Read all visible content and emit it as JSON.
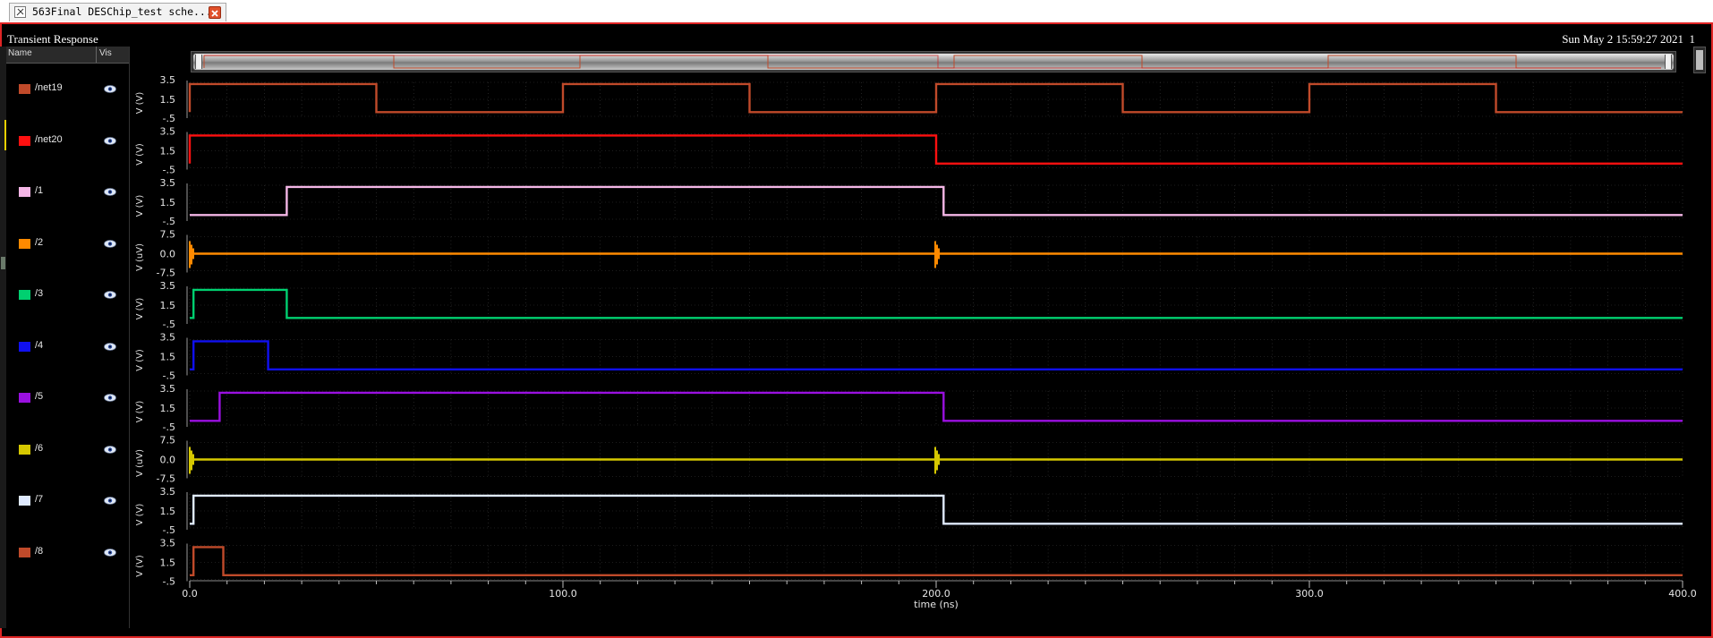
{
  "tab": {
    "label": "563Final DESChip_test sche...",
    "icon": "schematic-icon",
    "close_icon": "close-icon"
  },
  "window": {
    "title": "Transient Response",
    "datetime": "Sun May 2 15:59:27 2021",
    "page_index": "1"
  },
  "signal_panel": {
    "name_header": "Name",
    "vis_header": "Vis",
    "signals": [
      {
        "name": "/net19",
        "color": "#c04a2a"
      },
      {
        "name": "/net20",
        "color": "#ff1010"
      },
      {
        "name": "/1",
        "color": "#f4b6e6"
      },
      {
        "name": "/2",
        "color": "#ff8a00"
      },
      {
        "name": "/3",
        "color": "#00d070"
      },
      {
        "name": "/4",
        "color": "#1010f0"
      },
      {
        "name": "/5",
        "color": "#9a10e0"
      },
      {
        "name": "/6",
        "color": "#d6c800"
      },
      {
        "name": "/7",
        "color": "#dfeaff"
      },
      {
        "name": "/8",
        "color": "#c04a2a"
      }
    ]
  },
  "chart_data": {
    "type": "line",
    "xlabel": "time (ns)",
    "xlim": [
      0,
      400
    ],
    "x_ticks": [
      "0.0",
      "100.0",
      "200.0",
      "300.0",
      "400.0"
    ],
    "strips": [
      {
        "name": "/net19",
        "ylabel": "V (V)",
        "yticks": [
          "3.5",
          "1.5",
          "-.5"
        ],
        "ylim": [
          -0.5,
          3.5
        ],
        "series": {
          "x": [
            0,
            0,
            50,
            50,
            100,
            100,
            150,
            150,
            200,
            200,
            250,
            250,
            300,
            300,
            350,
            350,
            400
          ],
          "y": [
            0,
            3.3,
            3.3,
            0,
            0,
            3.3,
            3.3,
            0,
            0,
            3.3,
            3.3,
            0,
            0,
            3.3,
            3.3,
            0,
            0
          ]
        }
      },
      {
        "name": "/net20",
        "ylabel": "V (V)",
        "yticks": [
          "3.5",
          "1.5",
          "-.5"
        ],
        "ylim": [
          -0.5,
          3.5
        ],
        "series": {
          "x": [
            0,
            0,
            200,
            200,
            400
          ],
          "y": [
            0,
            3.3,
            3.3,
            0,
            0
          ]
        }
      },
      {
        "name": "/1",
        "ylabel": "V (V)",
        "yticks": [
          "3.5",
          "1.5",
          "-.5"
        ],
        "ylim": [
          -0.5,
          3.5
        ],
        "series": {
          "x": [
            0,
            26,
            26,
            202,
            202,
            400
          ],
          "y": [
            0,
            0,
            3.3,
            3.3,
            0,
            0
          ]
        }
      },
      {
        "name": "/2",
        "ylabel": "V (uV)",
        "yticks": [
          "7.5",
          "0.0",
          "-7.5"
        ],
        "ylim": [
          -7.5,
          7.5
        ],
        "glitches": [
          0,
          200
        ],
        "series": {
          "x": [
            0,
            400
          ],
          "y": [
            0,
            0
          ]
        }
      },
      {
        "name": "/3",
        "ylabel": "V (V)",
        "yticks": [
          "3.5",
          "1.5",
          "-.5"
        ],
        "ylim": [
          -0.5,
          3.5
        ],
        "series": {
          "x": [
            0,
            1,
            1,
            26,
            26,
            400
          ],
          "y": [
            0,
            0,
            3.3,
            3.3,
            0,
            0
          ]
        }
      },
      {
        "name": "/4",
        "ylabel": "V (V)",
        "yticks": [
          "3.5",
          "1.5",
          "-.5"
        ],
        "ylim": [
          -0.5,
          3.5
        ],
        "series": {
          "x": [
            0,
            1,
            1,
            21,
            21,
            400
          ],
          "y": [
            0,
            0,
            3.3,
            3.3,
            0,
            0
          ]
        }
      },
      {
        "name": "/5",
        "ylabel": "V (V)",
        "yticks": [
          "3.5",
          "1.5",
          "-.5"
        ],
        "ylim": [
          -0.5,
          3.5
        ],
        "series": {
          "x": [
            0,
            8,
            8,
            202,
            202,
            400
          ],
          "y": [
            0,
            0,
            3.3,
            3.3,
            0,
            0
          ]
        }
      },
      {
        "name": "/6",
        "ylabel": "V (uV)",
        "yticks": [
          "7.5",
          "0.0",
          "-7.5"
        ],
        "ylim": [
          -7.5,
          7.5
        ],
        "glitches": [
          0,
          200
        ],
        "series": {
          "x": [
            0,
            400
          ],
          "y": [
            0,
            0
          ]
        }
      },
      {
        "name": "/7",
        "ylabel": "V (V)",
        "yticks": [
          "3.5",
          "1.5",
          "-.5"
        ],
        "ylim": [
          -0.5,
          3.5
        ],
        "series": {
          "x": [
            0,
            1,
            1,
            202,
            202,
            400
          ],
          "y": [
            0,
            0,
            3.3,
            3.3,
            0,
            0
          ]
        }
      },
      {
        "name": "/8",
        "ylabel": "V (V)",
        "yticks": [
          "3.5",
          "1.5",
          "-.5"
        ],
        "ylim": [
          -0.5,
          3.5
        ],
        "series": {
          "x": [
            0,
            1,
            1,
            9,
            9,
            400
          ],
          "y": [
            0,
            0,
            3.3,
            3.3,
            0,
            0
          ]
        }
      }
    ]
  }
}
